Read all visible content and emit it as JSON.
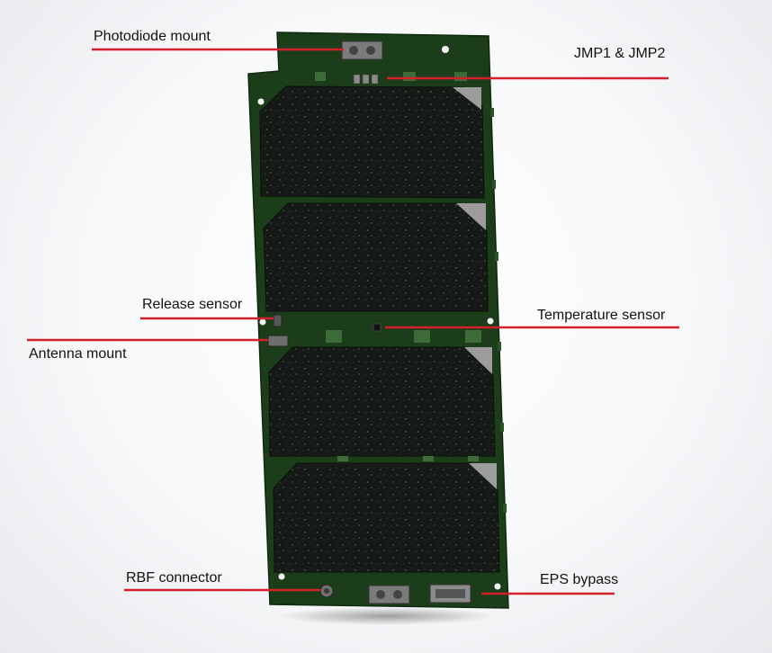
{
  "labels": {
    "photodiode_mount": "Photodiode mount",
    "jmp": "JMP1 & JMP2",
    "release_sensor": "Release sensor",
    "temperature_sensor": "Temperature sensor",
    "antenna_mount": "Antenna mount",
    "rbf_connector": "RBF connector",
    "eps_bypass": "EPS bypass"
  },
  "colors": {
    "board": "#1c3d1a",
    "board_edge": "#0f2a0e",
    "solar_cell": "#141816",
    "leader_line": "#d4202a",
    "background": "#f4f5f7"
  }
}
